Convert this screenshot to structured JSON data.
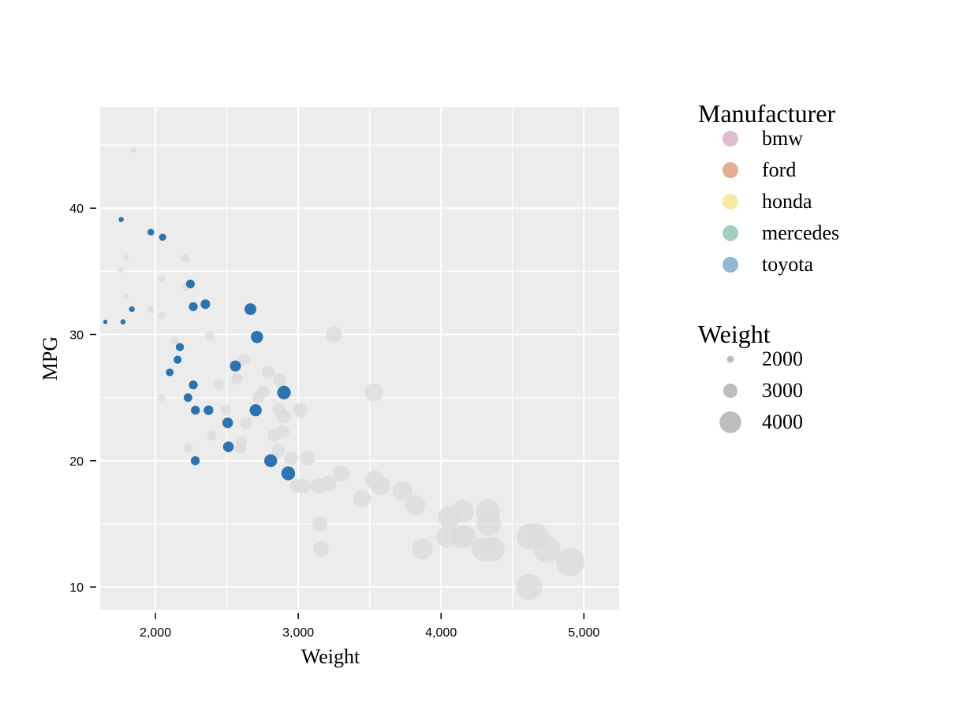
{
  "chart_data": {
    "type": "scatter",
    "title": "",
    "xlabel": "Weight",
    "ylabel": "MPG",
    "xlim": [
      1613,
      5247
    ],
    "ylim": [
      8.2,
      48
    ],
    "xticks": [
      2000,
      3000,
      4000,
      5000
    ],
    "xtick_labels": [
      "2,000",
      "3,000",
      "4,000",
      "5,000"
    ],
    "yticks": [
      10,
      20,
      30,
      40
    ],
    "ytick_labels": [
      "10",
      "20",
      "30",
      "40"
    ],
    "grid": true,
    "background": "#ececec",
    "legend_position": "right",
    "colors": {
      "bmw": "#e0bcd2",
      "ford": "#e2ad90",
      "honda": "#f5eba5",
      "mercedes": "#a3cfbc",
      "toyota": "#94b7d5",
      "highlight": "#2d73b0",
      "muted": "#dcdcdc"
    },
    "color_legend": {
      "title": "Manufacturer",
      "entries": [
        "bmw",
        "ford",
        "honda",
        "mercedes",
        "toyota"
      ]
    },
    "size_legend": {
      "title": "Weight",
      "entries": [
        {
          "label": "2000",
          "value": 2000
        },
        {
          "label": "3000",
          "value": 3000
        },
        {
          "label": "4000",
          "value": 4000
        }
      ]
    },
    "series": [
      {
        "highlighted": true,
        "points": [
          [
            1649,
            31
          ],
          [
            1760,
            39.1
          ],
          [
            1773,
            31
          ],
          [
            1835,
            32
          ],
          [
            1968,
            38.1
          ],
          [
            2050,
            37.7
          ],
          [
            2100,
            27
          ],
          [
            2155,
            28
          ],
          [
            2171,
            29
          ],
          [
            2228,
            25
          ],
          [
            2245,
            34
          ],
          [
            2265,
            26
          ],
          [
            2265,
            32.2
          ],
          [
            2280,
            24
          ],
          [
            2279,
            20
          ],
          [
            2350,
            32.4
          ],
          [
            2372,
            24
          ],
          [
            2506,
            23
          ],
          [
            2511,
            21.1
          ],
          [
            2560,
            27.5
          ],
          [
            2665,
            32
          ],
          [
            2702,
            24
          ],
          [
            2711,
            29.8
          ],
          [
            2807,
            20
          ],
          [
            2900,
            25.4
          ],
          [
            2930,
            19
          ]
        ]
      },
      {
        "highlighted": false,
        "points": [
          [
            1845,
            44.6
          ],
          [
            1795,
            36.1
          ],
          [
            1755,
            35.1
          ],
          [
            1795,
            33
          ],
          [
            1965,
            32
          ],
          [
            2045,
            34.4
          ],
          [
            2045,
            31.5
          ],
          [
            2045,
            25
          ],
          [
            2210,
            36
          ],
          [
            2215,
            33.8
          ],
          [
            2135,
            29.5
          ],
          [
            2230,
            21
          ],
          [
            2380,
            29.9
          ],
          [
            2395,
            22
          ],
          [
            2445,
            26
          ],
          [
            2490,
            24
          ],
          [
            2570,
            26.5
          ],
          [
            2595,
            21
          ],
          [
            2600,
            21.5
          ],
          [
            2620,
            28
          ],
          [
            2635,
            23
          ],
          [
            2720,
            25
          ],
          [
            2755,
            25.5
          ],
          [
            2790,
            27
          ],
          [
            2830,
            22
          ],
          [
            2860,
            20.8
          ],
          [
            2865,
            24
          ],
          [
            2870,
            26.4
          ],
          [
            2890,
            22.3
          ],
          [
            2900,
            23.5
          ],
          [
            2950,
            20.2
          ],
          [
            2990,
            18
          ],
          [
            3015,
            24
          ],
          [
            3035,
            18
          ],
          [
            3065,
            20.2
          ],
          [
            3140,
            18
          ],
          [
            3150,
            15
          ],
          [
            3160,
            13
          ],
          [
            3210,
            18.2
          ],
          [
            3250,
            30
          ],
          [
            3300,
            19
          ],
          [
            3445,
            17
          ],
          [
            3530,
            25.4
          ],
          [
            3535,
            18.5
          ],
          [
            3580,
            18
          ],
          [
            3730,
            17.6
          ],
          [
            3820,
            16.5
          ],
          [
            3870,
            13
          ],
          [
            4040,
            14
          ],
          [
            4055,
            15.5
          ],
          [
            4140,
            14
          ],
          [
            4150,
            16
          ],
          [
            4165,
            14
          ],
          [
            4300,
            13
          ],
          [
            4330,
            16
          ],
          [
            4335,
            15
          ],
          [
            4360,
            13
          ],
          [
            4620,
            14
          ],
          [
            4615,
            10
          ],
          [
            4660,
            14
          ],
          [
            4740,
            13
          ],
          [
            4905,
            12
          ]
        ]
      }
    ]
  }
}
